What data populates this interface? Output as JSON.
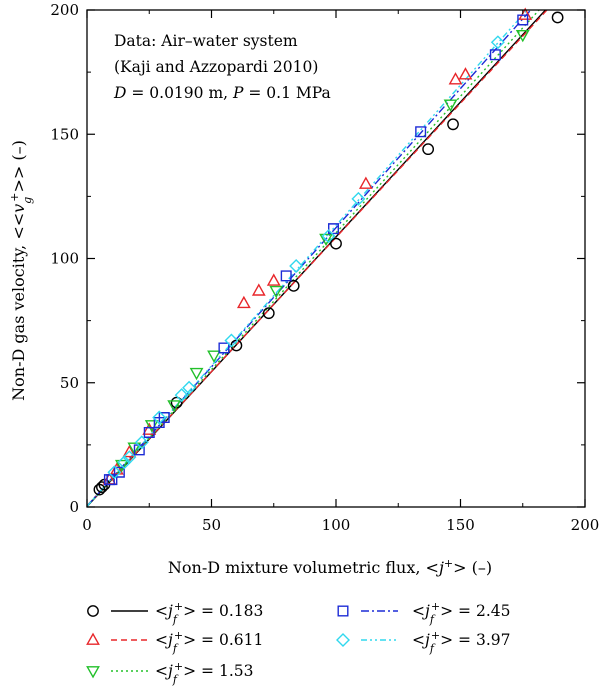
{
  "chart_data": {
    "type": "scatter",
    "xlabel_main": "Non-D mixture volumetric flux, <",
    "xlabel_sup": "+",
    "xlabel_end": "> (–)",
    "ylabel_main": "Non-D gas velocity, <<",
    "ylabel_sub": "g",
    "ylabel_sup": "+",
    "ylabel_end": ">> (–)",
    "xlim": [
      0,
      200
    ],
    "ylim": [
      0,
      200
    ],
    "xticks": [
      0,
      50,
      100,
      150,
      200
    ],
    "yticks": [
      0,
      50,
      100,
      150,
      200
    ],
    "annotations": [
      "Data: Air–water system",
      "(Kaji and Azzopardi 2010)",
      "D = 0.0190 m, P = 0.1 MPa"
    ],
    "series": [
      {
        "name": "0.183",
        "marker": "circle",
        "color": "#000000",
        "line_dash": "",
        "fit": {
          "slope": 1.085,
          "intercept": 0.2
        },
        "points": [
          [
            5,
            7
          ],
          [
            6,
            8
          ],
          [
            7,
            9
          ],
          [
            36,
            42
          ],
          [
            60,
            65
          ],
          [
            73,
            78
          ],
          [
            83,
            89
          ],
          [
            100,
            106
          ],
          [
            137,
            144
          ],
          [
            147,
            154
          ],
          [
            189,
            197
          ]
        ]
      },
      {
        "name": "0.611",
        "marker": "triangle-up",
        "color": "#e8262a",
        "line_dash": "6,4",
        "fit": {
          "slope": 1.08,
          "intercept": 0.5
        },
        "points": [
          [
            9,
            11
          ],
          [
            12,
            15
          ],
          [
            17,
            22
          ],
          [
            25,
            31
          ],
          [
            63,
            82
          ],
          [
            69,
            87
          ],
          [
            75,
            91
          ],
          [
            112,
            130
          ],
          [
            148,
            172
          ],
          [
            152,
            174
          ],
          [
            176,
            198
          ]
        ]
      },
      {
        "name": "1.53",
        "marker": "triangle-down",
        "color": "#22c02a",
        "line_dash": "2,3",
        "fit": {
          "slope": 1.1,
          "intercept": 0.3
        },
        "points": [
          [
            14,
            17
          ],
          [
            19,
            24
          ],
          [
            26,
            33
          ],
          [
            35,
            41
          ],
          [
            44,
            54
          ],
          [
            51,
            61
          ],
          [
            76,
            87
          ],
          [
            96,
            108
          ],
          [
            146,
            162
          ],
          [
            175,
            190
          ]
        ]
      },
      {
        "name": "2.45",
        "marker": "square",
        "color": "#1c2bd6",
        "line_dash": "8,3,2,3",
        "fit": {
          "slope": 1.12,
          "intercept": 0.4
        },
        "points": [
          [
            9,
            11
          ],
          [
            10,
            11
          ],
          [
            13,
            14
          ],
          [
            21,
            23
          ],
          [
            25,
            30
          ],
          [
            29,
            34
          ],
          [
            31,
            36
          ],
          [
            55,
            64
          ],
          [
            80,
            93
          ],
          [
            99,
            112
          ],
          [
            134,
            151
          ],
          [
            164,
            182
          ],
          [
            175,
            196
          ]
        ]
      },
      {
        "name": "3.97",
        "marker": "diamond",
        "color": "#30d8ee",
        "line_dash": "6,3,2,3,2,3",
        "fit": {
          "slope": 1.13,
          "intercept": 0.3
        },
        "points": [
          [
            11,
            14
          ],
          [
            15,
            18
          ],
          [
            17,
            20
          ],
          [
            22,
            26
          ],
          [
            29,
            36
          ],
          [
            38,
            45
          ],
          [
            41,
            48
          ],
          [
            58,
            67
          ],
          [
            84,
            97
          ],
          [
            97,
            109
          ],
          [
            109,
            124
          ],
          [
            165,
            187
          ]
        ]
      }
    ],
    "legend_prefix": "<",
    "legend_sub": "f",
    "legend_sup": "+",
    "legend_suffix": "> = "
  }
}
